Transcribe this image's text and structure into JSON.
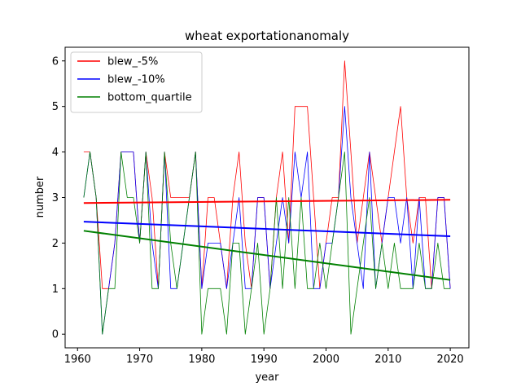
{
  "chart_data": {
    "type": "line",
    "title": "wheat exportationanomaly",
    "xlabel": "year",
    "ylabel": "number",
    "xlim": [
      1958,
      2023
    ],
    "ylim": [
      -0.3,
      6.3
    ],
    "xticks": [
      1960,
      1970,
      1980,
      1990,
      2000,
      2010,
      2020
    ],
    "yticks": [
      0,
      1,
      2,
      3,
      4,
      5,
      6
    ],
    "grid": false,
    "legend_position": "top-left",
    "x": [
      1961,
      1962,
      1963,
      1964,
      1965,
      1966,
      1967,
      1968,
      1969,
      1970,
      1971,
      1972,
      1973,
      1974,
      1975,
      1976,
      1977,
      1978,
      1979,
      1980,
      1981,
      1982,
      1983,
      1984,
      1985,
      1986,
      1987,
      1988,
      1989,
      1990,
      1991,
      1992,
      1993,
      1994,
      1995,
      1996,
      1997,
      1998,
      1999,
      2000,
      2001,
      2002,
      2003,
      2004,
      2005,
      2006,
      2007,
      2008,
      2009,
      2010,
      2011,
      2012,
      2013,
      2014,
      2015,
      2016,
      2017,
      2018,
      2019,
      2020
    ],
    "series": [
      {
        "name": "blew_-5%",
        "color": "#ff0000",
        "values": [
          4,
          4,
          3,
          1,
          1,
          2,
          4,
          4,
          4,
          2,
          4,
          3,
          1,
          4,
          3,
          3,
          3,
          3,
          4,
          1,
          3,
          3,
          2,
          1,
          3,
          4,
          2,
          1,
          3,
          3,
          1,
          3,
          4,
          2,
          5,
          5,
          5,
          3,
          1,
          2,
          3,
          3,
          6,
          4,
          2,
          3,
          4,
          3,
          2,
          3,
          4,
          5,
          3,
          2,
          3,
          3,
          1,
          3,
          3,
          1
        ],
        "trend": [
          2.88,
          2.95
        ]
      },
      {
        "name": "blew_-10%",
        "color": "#0000ff",
        "values": [
          3,
          4,
          3,
          0,
          1,
          2,
          4,
          4,
          4,
          2,
          4,
          2,
          1,
          4,
          1,
          1,
          2,
          3,
          4,
          1,
          2,
          2,
          2,
          1,
          2,
          3,
          1,
          1,
          3,
          3,
          1,
          2,
          3,
          2,
          4,
          3,
          4,
          1,
          1,
          2,
          2,
          3,
          5,
          3,
          2,
          1,
          4,
          1,
          2,
          3,
          3,
          2,
          3,
          1,
          3,
          1,
          1,
          3,
          3,
          1
        ],
        "trend": [
          2.47,
          2.15
        ]
      },
      {
        "name": "bottom_quartile",
        "color": "#008000",
        "values": [
          3,
          4,
          3,
          0,
          1,
          1,
          4,
          3,
          3,
          2,
          4,
          1,
          1,
          4,
          2,
          1,
          2,
          3,
          4,
          0,
          1,
          1,
          1,
          0,
          2,
          2,
          0,
          1,
          2,
          0,
          1,
          3,
          1,
          3,
          1,
          3,
          1,
          1,
          2,
          1,
          2,
          3,
          4,
          0,
          1,
          2,
          3,
          1,
          2,
          1,
          2,
          1,
          1,
          1,
          2,
          1,
          1,
          2,
          1,
          1
        ],
        "trend": [
          2.27,
          1.19
        ]
      }
    ]
  }
}
